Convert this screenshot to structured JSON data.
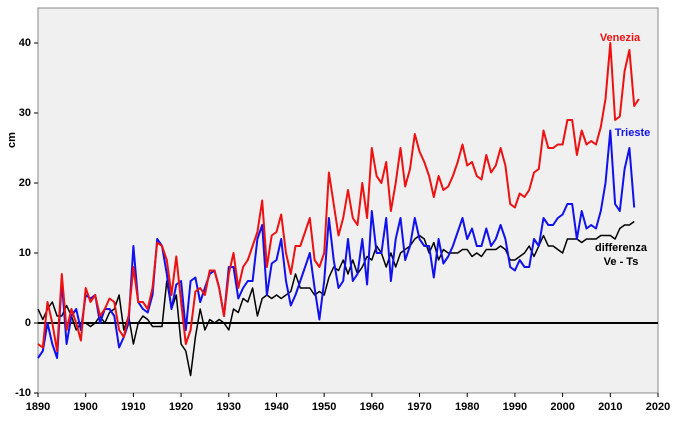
{
  "chart_data": {
    "type": "line",
    "y_label": "cm",
    "x": [
      1890,
      1891,
      1892,
      1893,
      1894,
      1895,
      1896,
      1897,
      1898,
      1899,
      1900,
      1901,
      1902,
      1903,
      1904,
      1905,
      1906,
      1907,
      1908,
      1909,
      1910,
      1911,
      1912,
      1913,
      1914,
      1915,
      1916,
      1917,
      1918,
      1919,
      1920,
      1921,
      1922,
      1923,
      1924,
      1925,
      1926,
      1927,
      1928,
      1929,
      1930,
      1931,
      1932,
      1933,
      1934,
      1935,
      1936,
      1937,
      1938,
      1939,
      1940,
      1941,
      1942,
      1943,
      1944,
      1945,
      1946,
      1947,
      1948,
      1949,
      1950,
      1951,
      1952,
      1953,
      1954,
      1955,
      1956,
      1957,
      1958,
      1959,
      1960,
      1961,
      1962,
      1963,
      1964,
      1965,
      1966,
      1967,
      1968,
      1969,
      1970,
      1971,
      1972,
      1973,
      1974,
      1975,
      1976,
      1977,
      1978,
      1979,
      1980,
      1981,
      1982,
      1983,
      1984,
      1985,
      1986,
      1987,
      1988,
      1989,
      1990,
      1991,
      1992,
      1993,
      1994,
      1995,
      1996,
      1997,
      1998,
      1999,
      2000,
      2001,
      2002,
      2003,
      2004,
      2005,
      2006,
      2007,
      2008,
      2009,
      2010,
      2011,
      2012,
      2013,
      2014,
      2015,
      2016
    ],
    "series": [
      {
        "name": "Venezia",
        "color": "#ee1111",
        "values": [
          -3,
          -3.5,
          3,
          0,
          -4,
          7,
          -1,
          2,
          0,
          -2.5,
          5,
          3,
          4,
          1,
          2,
          3.5,
          3,
          -1,
          -2,
          1,
          8,
          3,
          3,
          2,
          5,
          11.5,
          11,
          9,
          4,
          9.5,
          3,
          -3,
          -1,
          4.5,
          5,
          4,
          7.5,
          7.5,
          5,
          1,
          7,
          10,
          5,
          8,
          9,
          11,
          13,
          17.5,
          8,
          12.5,
          13,
          15.5,
          10,
          7,
          11,
          11,
          13,
          15,
          9,
          8,
          10,
          21.5,
          17,
          12.5,
          15,
          19,
          15,
          14,
          20,
          15,
          25,
          21,
          20,
          23,
          16,
          20,
          25,
          19.5,
          22,
          27,
          24.5,
          23,
          21,
          18,
          21,
          19,
          19.5,
          21,
          23,
          25.5,
          22.5,
          23,
          21,
          20.5,
          24,
          21.5,
          22.5,
          25,
          22.5,
          17,
          16.5,
          18.5,
          18,
          19,
          21.5,
          22,
          27.5,
          25,
          25,
          25.5,
          25.5,
          29,
          29,
          24,
          27.5,
          25.5,
          26,
          25.5,
          28,
          32,
          40,
          29,
          29.5,
          36,
          39,
          31,
          32
        ]
      },
      {
        "name": "Trieste",
        "color": "#1111ee",
        "values": [
          -5,
          -4,
          0,
          -3,
          -5,
          6,
          -3,
          1,
          2,
          -1,
          4,
          3.5,
          4,
          0,
          2,
          2,
          1,
          -3.5,
          -2,
          0,
          11,
          3,
          2,
          1.5,
          4,
          12,
          11,
          7,
          2,
          5.5,
          6,
          -1,
          6,
          6.5,
          3,
          5,
          7,
          7.5,
          5,
          1,
          8,
          8,
          3.5,
          5,
          6,
          6,
          12,
          14,
          4,
          8.5,
          9,
          12,
          6,
          2.5,
          4,
          6,
          8,
          10,
          5,
          0.5,
          6,
          15,
          9,
          5,
          6,
          12,
          6,
          7,
          12,
          5.5,
          16,
          10,
          10,
          15,
          6,
          12,
          15,
          9,
          11,
          15,
          12,
          11,
          11,
          6.5,
          12,
          8.5,
          9.5,
          11,
          13,
          15,
          12,
          13.5,
          11,
          11,
          13.5,
          11,
          12,
          14,
          12,
          8,
          7.5,
          9,
          8,
          8,
          12,
          11,
          15,
          14,
          14,
          15,
          15.5,
          17,
          17,
          12,
          16,
          13.5,
          14,
          13.5,
          16,
          20,
          27.5,
          17,
          16,
          22,
          25,
          16.5,
          null
        ]
      },
      {
        "name": "differenza Ve - Ts",
        "color": "#000000",
        "values": [
          2,
          0.5,
          2,
          3,
          1,
          1,
          2.5,
          1,
          -1,
          0,
          0,
          -0.5,
          0,
          1,
          0,
          1.5,
          2,
          4,
          -1,
          1,
          -3,
          0,
          1,
          0.5,
          -0.5,
          -0.5,
          -0.5,
          6,
          2,
          4,
          -3,
          -4,
          -7.5,
          -2,
          2,
          -1,
          0.5,
          0,
          0.5,
          0,
          -1,
          2,
          1.5,
          3.5,
          3,
          5,
          1,
          3.5,
          4,
          3.5,
          4,
          3.5,
          4,
          4.5,
          7,
          5,
          5,
          5,
          4,
          4.5,
          4,
          6.5,
          8,
          7.5,
          9,
          7,
          9,
          7,
          8,
          9.5,
          9,
          11,
          10,
          8,
          10,
          8,
          10,
          10.5,
          11,
          12,
          12.5,
          12,
          10,
          11.5,
          9,
          10.5,
          10,
          10,
          10,
          10.5,
          10.5,
          9.5,
          10,
          9.5,
          10.5,
          10.5,
          10.5,
          11,
          10.5,
          9,
          9,
          9.5,
          10,
          11,
          9.5,
          11,
          12.5,
          11,
          11,
          10.5,
          10,
          12,
          12,
          12,
          11.5,
          12,
          12,
          12,
          12.5,
          12.5,
          12.5,
          12,
          13.5,
          14,
          14,
          14.5,
          null
        ]
      }
    ],
    "xlim": [
      1890,
      2020
    ],
    "xticks": [
      1890,
      1900,
      1910,
      1920,
      1930,
      1940,
      1950,
      1960,
      1970,
      1980,
      1990,
      2000,
      2010,
      2020
    ],
    "ylim": [
      -10,
      45
    ],
    "yticks": [
      -10,
      0,
      10,
      20,
      30,
      40
    ]
  }
}
